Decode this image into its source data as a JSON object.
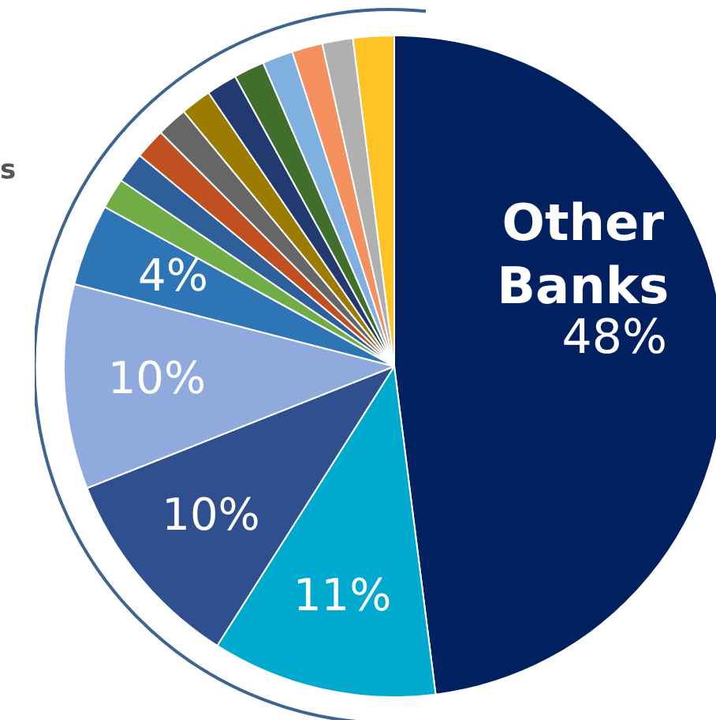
{
  "chart_data": {
    "type": "pie",
    "categories": [
      "Other Banks",
      null,
      null,
      null,
      null,
      null,
      null,
      null,
      null,
      null,
      null,
      null,
      null,
      null,
      null,
      null
    ],
    "values": [
      48,
      11,
      10,
      10,
      4,
      1.5,
      1.5,
      1.5,
      1.5,
      1.5,
      1.5,
      1.5,
      1.5,
      1.5,
      1.5,
      2
    ],
    "value_labels": [
      "48%",
      "11%",
      "10%",
      "10%",
      "4%",
      null,
      null,
      null,
      null,
      null,
      null,
      null,
      null,
      null,
      null,
      null
    ],
    "colors": [
      "#002060",
      "#00a9ce",
      "#2f4f8f",
      "#8faadc",
      "#2e75b6",
      "#70ad47",
      "#2e5f9a",
      "#c0501f",
      "#666666",
      "#9c7c00",
      "#223a70",
      "#3f6f2a",
      "#7fb0e0",
      "#f4915e",
      "#b0b0b0",
      "#ffc423"
    ],
    "annotations": [
      "s"
    ],
    "legend": false
  }
}
